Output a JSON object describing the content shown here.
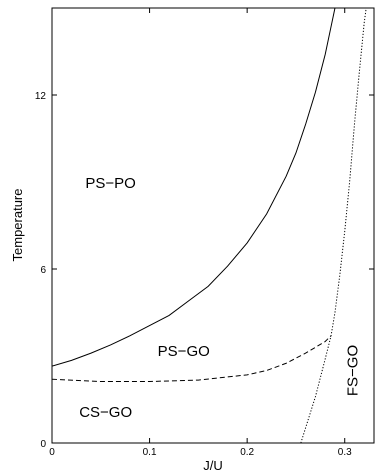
{
  "chart_data": {
    "type": "line",
    "title": "",
    "xlabel": "J/U",
    "ylabel": "Temperature",
    "xlim": [
      0,
      0.33
    ],
    "ylim": [
      0,
      15
    ],
    "xticks": [
      {
        "value": 0,
        "label": "0"
      },
      {
        "value": 0.1,
        "label": "0.1"
      },
      {
        "value": 0.2,
        "label": "0.2"
      },
      {
        "value": 0.3,
        "label": "0.3"
      }
    ],
    "yticks": [
      {
        "value": 0,
        "label": "0"
      },
      {
        "value": 6,
        "label": "6"
      },
      {
        "value": 12,
        "label": "12"
      }
    ],
    "grid": false,
    "legend": "none",
    "series": [
      {
        "style": "solid",
        "color": "#000000",
        "x": [
          0,
          0.02,
          0.04,
          0.06,
          0.08,
          0.1,
          0.12,
          0.14,
          0.16,
          0.18,
          0.2,
          0.22,
          0.24,
          0.25,
          0.26,
          0.27,
          0.28,
          0.285,
          0.29,
          0.295,
          0.3,
          0.305
        ],
        "y": [
          2.65,
          2.85,
          3.1,
          3.38,
          3.7,
          4.05,
          4.4,
          4.9,
          5.4,
          6.1,
          6.9,
          7.9,
          9.2,
          10.0,
          11.0,
          12.1,
          13.4,
          14.2,
          15.0,
          15.6,
          16.4,
          17.2
        ]
      },
      {
        "style": "dashed",
        "color": "#000000",
        "x": [
          0,
          0.05,
          0.1,
          0.15,
          0.2,
          0.22,
          0.24,
          0.26,
          0.27,
          0.28,
          0.286
        ],
        "y": [
          2.2,
          2.12,
          2.12,
          2.17,
          2.35,
          2.5,
          2.75,
          3.1,
          3.3,
          3.5,
          3.7
        ]
      },
      {
        "style": "dotted",
        "color": "#000000",
        "x": [
          0.255,
          0.27,
          0.28,
          0.286,
          0.29,
          0.295,
          0.3,
          0.305,
          0.31,
          0.315,
          0.32,
          0.322
        ],
        "y": [
          0,
          1.6,
          2.9,
          3.7,
          4.5,
          5.8,
          7.3,
          9.0,
          11.0,
          12.8,
          14.5,
          15
        ]
      }
    ],
    "annotations": [
      {
        "text": "PS−PO",
        "x": 0.06,
        "y": 8.8,
        "rotate": 0
      },
      {
        "text": "PS−GO",
        "x": 0.135,
        "y": 3.0,
        "rotate": 0
      },
      {
        "text": "CS−GO",
        "x": 0.055,
        "y": 0.9,
        "rotate": 0
      },
      {
        "text": "FS−GO",
        "x": 0.313,
        "y": 2.5,
        "rotate": -90
      }
    ]
  }
}
